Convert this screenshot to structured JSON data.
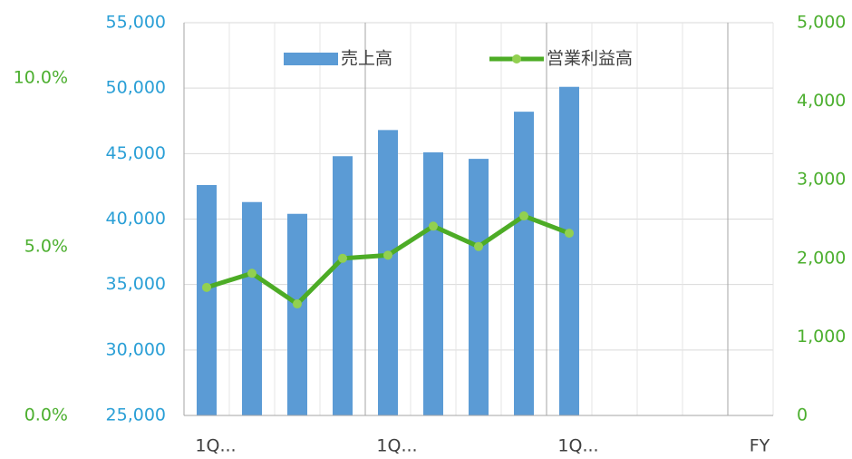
{
  "chart_data": {
    "type": "bar_line",
    "categories": [
      "1Q...",
      null,
      null,
      null,
      "1Q...",
      null,
      null,
      null,
      "1Q...",
      null,
      null,
      null,
      "FY"
    ],
    "series": [
      {
        "name": "売上高",
        "type": "bar",
        "color": "#5b9bd5",
        "values": [
          42600,
          41300,
          40400,
          44800,
          46800,
          45100,
          44600,
          48200,
          50100,
          null,
          null,
          null,
          null
        ]
      },
      {
        "name": "営業利益高",
        "type": "line",
        "axis": "y2",
        "color": "#4dac26",
        "marker_color": "#92d050",
        "values": [
          1630,
          1810,
          1420,
          2000,
          2040,
          2410,
          2150,
          2540,
          2320,
          null,
          null,
          null,
          null
        ]
      }
    ],
    "ylim": [
      25000,
      55000
    ],
    "yticks": [
      {
        "value": 25000,
        "label": "25,000"
      },
      {
        "value": 30000,
        "label": "30,000"
      },
      {
        "value": 35000,
        "label": "35,000"
      },
      {
        "value": 40000,
        "label": "40,000"
      },
      {
        "value": 45000,
        "label": "45,000"
      },
      {
        "value": 50000,
        "label": "50,000"
      },
      {
        "value": 55000,
        "label": "55,000"
      }
    ],
    "y2lim": [
      0,
      5000
    ],
    "y2ticks": [
      0,
      {
        "value": 1000,
        "label": "1,000"
      },
      {
        "value": 2000,
        "label": "2,000"
      },
      {
        "value": 3000,
        "label": "3,000"
      },
      {
        "value": 4000,
        "label": "4,000"
      },
      {
        "value": 5000,
        "label": "5,000"
      }
    ],
    "y3lim": [
      0,
      11.64
    ],
    "y3ticks": [
      {
        "value": 0,
        "label": "0.0%"
      },
      {
        "value": 5,
        "label": "5.0%"
      },
      {
        "value": 10,
        "label": "10.0%"
      }
    ],
    "y_color": "#2a9fd6",
    "y2_color": "#4caf2f",
    "grid": true,
    "legend": "top"
  }
}
